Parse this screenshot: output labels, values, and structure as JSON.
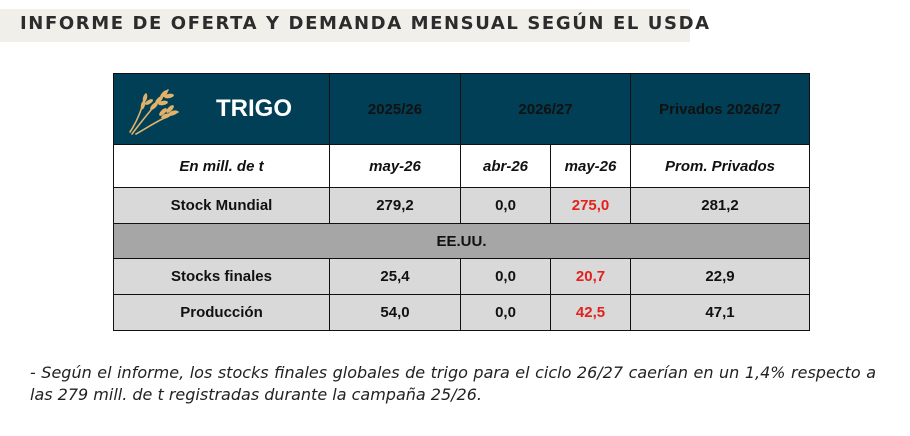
{
  "header": {
    "title": "INFORME DE OFERTA Y DEMANDA MENSUAL SEGÚN EL USDA"
  },
  "table": {
    "crop_icon": "wheat-icon",
    "crop": "TRIGO",
    "columns": [
      "2025/26",
      "2026/27",
      "Privados 2026/27"
    ],
    "sub": {
      "label": "En mill. de t",
      "c1": "may-26",
      "c2": "abr-26",
      "c3": "may-26",
      "c4": "Prom. Privados"
    },
    "rows": [
      {
        "label": "Stock Mundial",
        "v1": "279,2",
        "v2": "0,0",
        "v3": "275,0",
        "v4": "281,2"
      },
      {
        "label": "Stocks finales",
        "v1": "25,4",
        "v2": "0,0",
        "v3": "20,7",
        "v4": "22,9"
      },
      {
        "label": "Producción",
        "v1": "54,0",
        "v2": "0,0",
        "v3": "42,5",
        "v4": "47,1"
      }
    ],
    "section": "EE.UU.",
    "colors": {
      "header_bg": "#003f55",
      "highlight": "#e3211c",
      "row_bg": "#d9d9d9",
      "section_bg": "#a6a6a6"
    }
  },
  "footnote": "- Según el informe, los stocks finales globales de trigo para el ciclo 26/27 caerían en un 1,4% respecto a las 279 mill. de t registradas durante la campaña 25/26."
}
